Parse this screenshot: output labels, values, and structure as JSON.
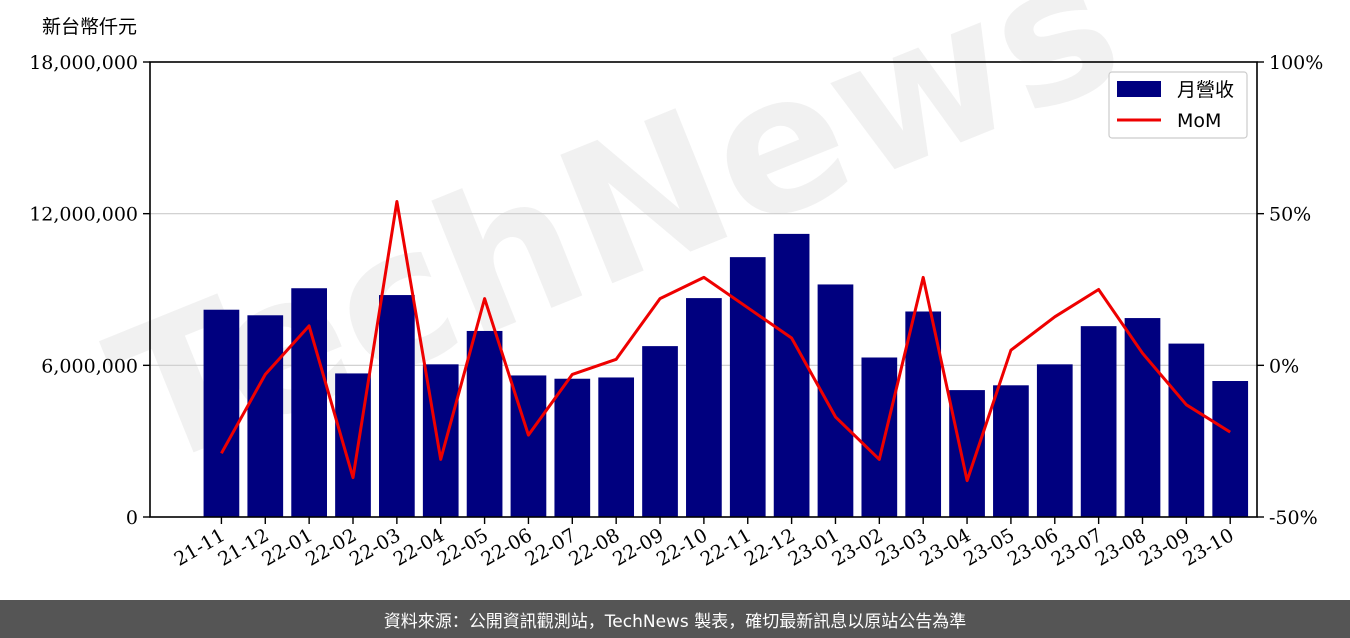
{
  "chart_data": {
    "type": "bar",
    "title": "",
    "left_axis_unit": "新台幣仟元",
    "categories": [
      "21-11",
      "21-12",
      "22-01",
      "22-02",
      "22-03",
      "22-04",
      "22-05",
      "22-06",
      "22-07",
      "22-08",
      "22-09",
      "22-10",
      "22-11",
      "22-12",
      "23-01",
      "23-02",
      "23-03",
      "23-04",
      "23-05",
      "23-06",
      "23-07",
      "23-08",
      "23-09",
      "23-10"
    ],
    "series": [
      {
        "name": "月營收",
        "kind": "bar",
        "axis": "left",
        "color": "#00007f",
        "values": [
          8200000,
          7980000,
          9050000,
          5680000,
          8780000,
          6040000,
          7360000,
          5600000,
          5470000,
          5520000,
          6760000,
          8660000,
          10280000,
          11200000,
          9200000,
          6310000,
          8130000,
          5020000,
          5210000,
          6040000,
          7550000,
          7870000,
          6860000,
          5380000
        ]
      },
      {
        "name": "MoM",
        "kind": "line",
        "axis": "right",
        "color": "#ee0000",
        "values": [
          -29,
          -3,
          13,
          -37,
          54,
          -31,
          22,
          -23,
          -3,
          2,
          22,
          29,
          19,
          9,
          -17,
          -31,
          29,
          -38,
          5,
          16,
          25,
          4,
          -13,
          -22
        ]
      }
    ],
    "left_axis": {
      "min": 0,
      "max": 18000000,
      "ticks": [
        "0",
        "6,000,000",
        "12,000,000",
        "18,000,000"
      ]
    },
    "right_axis": {
      "min": -50,
      "max": 100,
      "ticks": [
        "-50%",
        "0%",
        "50%",
        "100%"
      ]
    },
    "grid": "horizontal",
    "legend_position": "top-right",
    "colors": {
      "bar": "#00007f",
      "line": "#ee0000",
      "footer_bg": "#555555",
      "grid": "#cccccc"
    }
  },
  "watermark": {
    "text": "TechNews"
  },
  "footer": {
    "text": "資料來源：公開資訊觀測站，TechNews 製表，確切最新訊息以原站公告為準"
  }
}
